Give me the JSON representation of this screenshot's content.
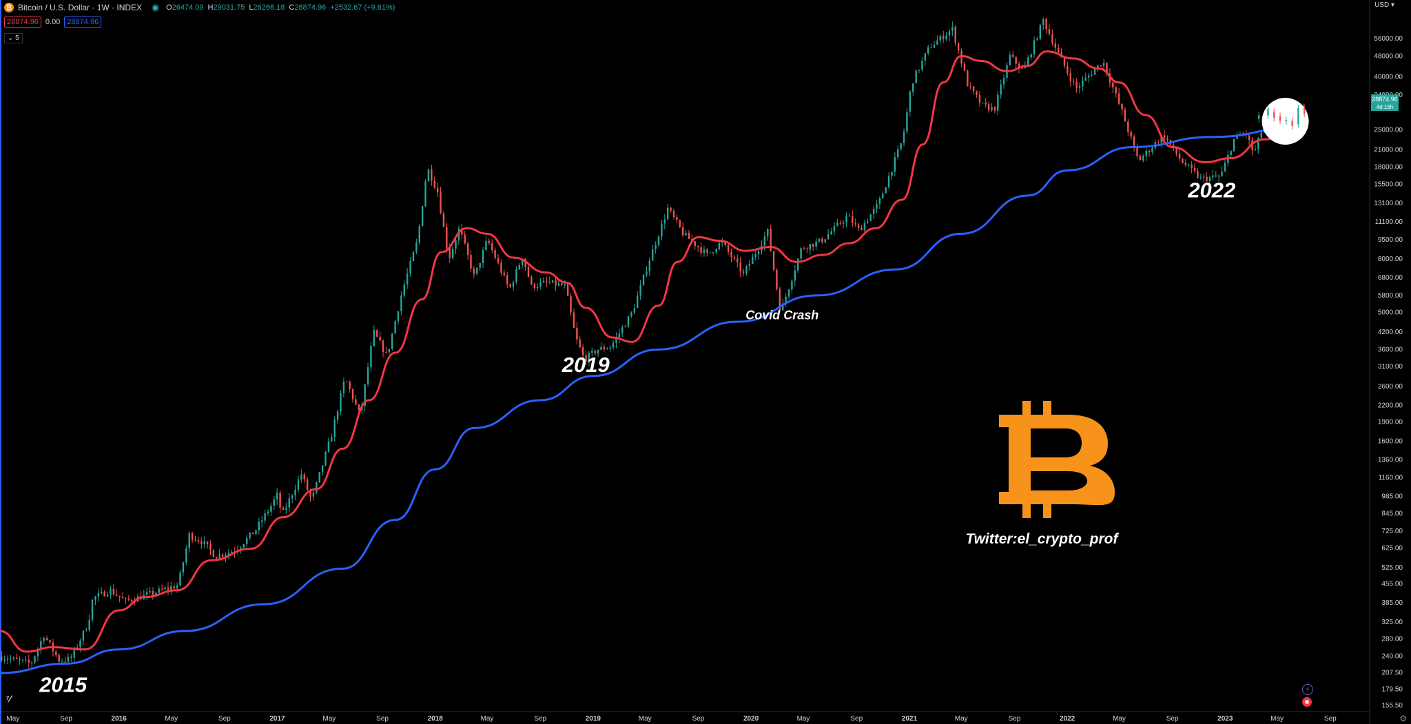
{
  "header": {
    "symbol_title": "Bitcoin / U.S. Dollar · 1W · INDEX",
    "ohlc": [
      {
        "k": "O",
        "v": "26474.09"
      },
      {
        "k": "H",
        "v": "29031.75"
      },
      {
        "k": "L",
        "v": "26266.18"
      },
      {
        "k": "C",
        "v": "28874.96"
      },
      {
        "k": "",
        "v": "+2532.67 (+9.61%)"
      }
    ],
    "ma_red_value": "28874.96",
    "ma_blue_value": "28874.96",
    "ma_red_dash": "0.00",
    "collapse_label": "5",
    "currency": "USD"
  },
  "price_tag": {
    "value": "28874.96",
    "countdown": "4d 16h"
  },
  "logo_text": "Twitter:el_crypto_prof",
  "colors": {
    "background": "#000000",
    "up": "#26a69a",
    "down": "#ef5350",
    "ma_short": "#f23645",
    "ma_long": "#2962ff",
    "bitcoin_orange": "#f7931a"
  },
  "chart_data": {
    "type": "candlestick",
    "y_scale": "log",
    "ylim": [
      150,
      75000
    ],
    "xlim": [
      "2015-04-01",
      "2023-12-01"
    ],
    "y_ticks": [
      "155.50",
      "179.50",
      "207.50",
      "240.00",
      "280.00",
      "325.00",
      "385.00",
      "455.00",
      "525.00",
      "625.00",
      "725.00",
      "845.00",
      "985.00",
      "1160.00",
      "1360.00",
      "1600.00",
      "1900.00",
      "2200.00",
      "2600.00",
      "3100.00",
      "3600.00",
      "4200.00",
      "5000.00",
      "5800.00",
      "6800.00",
      "8000.00",
      "9500.00",
      "11100.00",
      "13100.00",
      "15500.00",
      "18000.00",
      "21000.00",
      "25000.00",
      "34000.00",
      "40000.00",
      "48000.00",
      "56000.00"
    ],
    "x_ticks": [
      {
        "label": "May",
        "date": "2015-05-01"
      },
      {
        "label": "Sep",
        "date": "2015-09-01"
      },
      {
        "label": "2016",
        "date": "2016-01-01"
      },
      {
        "label": "May",
        "date": "2016-05-01"
      },
      {
        "label": "Sep",
        "date": "2016-09-01"
      },
      {
        "label": "2017",
        "date": "2017-01-01"
      },
      {
        "label": "May",
        "date": "2017-05-01"
      },
      {
        "label": "Sep",
        "date": "2017-09-01"
      },
      {
        "label": "2018",
        "date": "2018-01-01"
      },
      {
        "label": "May",
        "date": "2018-05-01"
      },
      {
        "label": "Sep",
        "date": "2018-09-01"
      },
      {
        "label": "2019",
        "date": "2019-01-01"
      },
      {
        "label": "May",
        "date": "2019-05-01"
      },
      {
        "label": "Sep",
        "date": "2019-09-01"
      },
      {
        "label": "2020",
        "date": "2020-01-01"
      },
      {
        "label": "May",
        "date": "2020-05-01"
      },
      {
        "label": "Sep",
        "date": "2020-09-01"
      },
      {
        "label": "2021",
        "date": "2021-01-01"
      },
      {
        "label": "May",
        "date": "2021-05-01"
      },
      {
        "label": "Sep",
        "date": "2021-09-01"
      },
      {
        "label": "2022",
        "date": "2022-01-01"
      },
      {
        "label": "May",
        "date": "2022-05-01"
      },
      {
        "label": "Sep",
        "date": "2022-09-01"
      },
      {
        "label": "2023",
        "date": "2023-01-01"
      },
      {
        "label": "May",
        "date": "2023-05-01"
      },
      {
        "label": "Sep",
        "date": "2023-09-01"
      }
    ],
    "price_path": [
      [
        "2015-04-01",
        240
      ],
      [
        "2015-06-15",
        225
      ],
      [
        "2015-07-15",
        290
      ],
      [
        "2015-08-20",
        230
      ],
      [
        "2015-09-15",
        235
      ],
      [
        "2015-10-25",
        320
      ],
      [
        "2015-11-05",
        400
      ],
      [
        "2015-12-15",
        430
      ],
      [
        "2016-01-20",
        390
      ],
      [
        "2016-03-15",
        415
      ],
      [
        "2016-05-20",
        450
      ],
      [
        "2016-06-15",
        700
      ],
      [
        "2016-07-15",
        660
      ],
      [
        "2016-08-15",
        580
      ],
      [
        "2016-10-01",
        615
      ],
      [
        "2016-11-15",
        730
      ],
      [
        "2016-12-20",
        900
      ],
      [
        "2017-01-05",
        1000
      ],
      [
        "2017-01-15",
        830
      ],
      [
        "2017-03-01",
        1200
      ],
      [
        "2017-03-25",
        950
      ],
      [
        "2017-05-10",
        1700
      ],
      [
        "2017-06-10",
        2800
      ],
      [
        "2017-07-15",
        2000
      ],
      [
        "2017-08-15",
        4200
      ],
      [
        "2017-09-15",
        3400
      ],
      [
        "2017-10-20",
        6000
      ],
      [
        "2017-11-25",
        9500
      ],
      [
        "2017-12-17",
        18000
      ],
      [
        "2018-01-10",
        14500
      ],
      [
        "2018-02-05",
        8000
      ],
      [
        "2018-03-01",
        10500
      ],
      [
        "2018-04-05",
        6800
      ],
      [
        "2018-05-05",
        9500
      ],
      [
        "2018-06-25",
        6100
      ],
      [
        "2018-07-25",
        8200
      ],
      [
        "2018-08-15",
        6300
      ],
      [
        "2018-09-20",
        6500
      ],
      [
        "2018-11-01",
        6300
      ],
      [
        "2018-11-25",
        4000
      ],
      [
        "2018-12-15",
        3300
      ],
      [
        "2019-01-15",
        3600
      ],
      [
        "2019-02-15",
        3700
      ],
      [
        "2019-04-05",
        5000
      ],
      [
        "2019-05-15",
        8000
      ],
      [
        "2019-06-26",
        12500
      ],
      [
        "2019-08-01",
        10000
      ],
      [
        "2019-09-25",
        8300
      ],
      [
        "2019-10-28",
        9300
      ],
      [
        "2019-12-18",
        7000
      ],
      [
        "2020-02-12",
        10200
      ],
      [
        "2020-03-13",
        5000
      ],
      [
        "2020-04-30",
        8800
      ],
      [
        "2020-06-15",
        9400
      ],
      [
        "2020-08-15",
        11700
      ],
      [
        "2020-09-10",
        10300
      ],
      [
        "2020-10-25",
        13000
      ],
      [
        "2020-12-20",
        23000
      ],
      [
        "2021-01-10",
        38000
      ],
      [
        "2021-02-20",
        52000
      ],
      [
        "2021-04-14",
        61000
      ],
      [
        "2021-05-20",
        37000
      ],
      [
        "2021-06-22",
        31000
      ],
      [
        "2021-07-20",
        30000
      ],
      [
        "2021-08-25",
        48000
      ],
      [
        "2021-09-25",
        42000
      ],
      [
        "2021-11-10",
        66000
      ],
      [
        "2021-12-20",
        47000
      ],
      [
        "2022-01-25",
        36000
      ],
      [
        "2022-03-28",
        46000
      ],
      [
        "2022-05-12",
        29000
      ],
      [
        "2022-06-18",
        19000
      ],
      [
        "2022-08-15",
        24000
      ],
      [
        "2022-09-25",
        19000
      ],
      [
        "2022-11-10",
        16200
      ],
      [
        "2022-12-25",
        16600
      ],
      [
        "2023-01-25",
        23000
      ],
      [
        "2023-02-20",
        24500
      ],
      [
        "2023-03-12",
        20200
      ],
      [
        "2023-04-15",
        30000
      ],
      [
        "2023-05-15",
        26800
      ],
      [
        "2023-06-10",
        25500
      ],
      [
        "2023-06-25",
        30500
      ],
      [
        "2023-07-10",
        28874.96
      ]
    ],
    "series": [
      {
        "name": "",
        "role": "short-ma",
        "points": [
          [
            "2015-04-01",
            300
          ],
          [
            "2015-06-01",
            250
          ],
          [
            "2015-08-01",
            260
          ],
          [
            "2015-10-15",
            255
          ],
          [
            "2016-01-01",
            360
          ],
          [
            "2016-03-01",
            405
          ],
          [
            "2016-05-15",
            430
          ],
          [
            "2016-08-01",
            560
          ],
          [
            "2016-11-01",
            620
          ],
          [
            "2017-01-15",
            820
          ],
          [
            "2017-04-01",
            1050
          ],
          [
            "2017-06-01",
            1500
          ],
          [
            "2017-08-01",
            2300
          ],
          [
            "2017-10-01",
            3500
          ],
          [
            "2017-12-01",
            5600
          ],
          [
            "2018-01-15",
            8500
          ],
          [
            "2018-03-15",
            10500
          ],
          [
            "2018-05-01",
            10000
          ],
          [
            "2018-07-01",
            8100
          ],
          [
            "2018-09-15",
            7100
          ],
          [
            "2018-11-01",
            6500
          ],
          [
            "2018-12-15",
            5200
          ],
          [
            "2019-02-15",
            4000
          ],
          [
            "2019-04-01",
            3850
          ],
          [
            "2019-06-01",
            5300
          ],
          [
            "2019-07-15",
            7800
          ],
          [
            "2019-09-01",
            9700
          ],
          [
            "2019-10-20",
            9400
          ],
          [
            "2019-12-20",
            8600
          ],
          [
            "2020-02-15",
            8900
          ],
          [
            "2020-04-15",
            7800
          ],
          [
            "2020-06-15",
            8300
          ],
          [
            "2020-08-15",
            9200
          ],
          [
            "2020-10-15",
            10500
          ],
          [
            "2020-12-15",
            13500
          ],
          [
            "2021-02-01",
            22000
          ],
          [
            "2021-03-20",
            38000
          ],
          [
            "2021-05-01",
            48000
          ],
          [
            "2021-06-15",
            46000
          ],
          [
            "2021-08-15",
            42000
          ],
          [
            "2021-10-01",
            44000
          ],
          [
            "2021-11-15",
            50000
          ],
          [
            "2022-01-15",
            47000
          ],
          [
            "2022-03-15",
            43000
          ],
          [
            "2022-05-01",
            38000
          ],
          [
            "2022-07-01",
            28500
          ],
          [
            "2022-09-01",
            21500
          ],
          [
            "2022-11-15",
            18800
          ],
          [
            "2023-01-15",
            19500
          ],
          [
            "2023-04-01",
            23000
          ],
          [
            "2023-07-10",
            27500
          ]
        ]
      },
      {
        "name": "",
        "role": "long-ma",
        "points": [
          [
            "2015-04-01",
            207
          ],
          [
            "2015-09-01",
            225
          ],
          [
            "2016-01-01",
            255
          ],
          [
            "2016-06-01",
            300
          ],
          [
            "2016-12-01",
            380
          ],
          [
            "2017-06-01",
            520
          ],
          [
            "2017-10-01",
            800
          ],
          [
            "2018-01-01",
            1250
          ],
          [
            "2018-04-01",
            1800
          ],
          [
            "2018-09-01",
            2300
          ],
          [
            "2019-01-01",
            2850
          ],
          [
            "2019-06-01",
            3600
          ],
          [
            "2019-12-01",
            4600
          ],
          [
            "2020-06-01",
            5800
          ],
          [
            "2020-12-01",
            7300
          ],
          [
            "2021-05-01",
            10000
          ],
          [
            "2021-10-01",
            14000
          ],
          [
            "2022-01-01",
            17500
          ],
          [
            "2022-06-01",
            21500
          ],
          [
            "2022-12-01",
            23500
          ],
          [
            "2023-07-10",
            26000
          ]
        ]
      }
    ],
    "annotations": [
      {
        "text": "2015",
        "date": "2015-08-25",
        "price": 175
      },
      {
        "text": "2019",
        "date": "2018-12-15",
        "price": 2950
      },
      {
        "text": "Covid Crash",
        "date": "2020-03-13",
        "price": 4700
      },
      {
        "text": "2022",
        "date": "2022-12-01",
        "price": 13800
      }
    ],
    "highlight_circle": {
      "date": "2023-05-20",
      "price": 27000
    }
  }
}
